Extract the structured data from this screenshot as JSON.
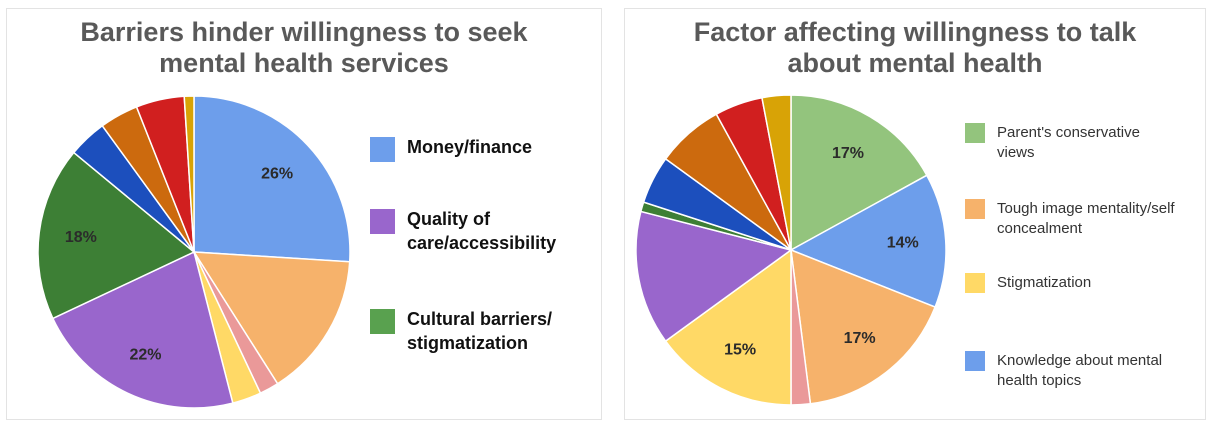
{
  "charts": [
    {
      "id": "left",
      "title": "Barriers hinder willingness to seek\nmental health services",
      "legend": [
        {
          "label": "Money/finance",
          "color": "#6d9eeb"
        },
        {
          "label": "Quality of\ncare/accessibility",
          "color": "#9966cc"
        },
        {
          "label": "Cultural barriers/\nstigmatization",
          "color": "#59a14f"
        }
      ]
    },
    {
      "id": "right",
      "title": "Factor affecting willingness to talk\nabout mental health",
      "legend": [
        {
          "label": "Parent's conservative\nviews",
          "color": "#93c47d"
        },
        {
          "label": "Tough image mentality/self\nconcealment",
          "color": "#f6b26b"
        },
        {
          "label": "Stigmatization",
          "color": "#ffd966"
        },
        {
          "label": "Knowledge about mental\nhealth topics",
          "color": "#6d9eeb"
        }
      ]
    }
  ],
  "chart_data": [
    {
      "type": "pie",
      "title": "Barriers hinder willingness to seek mental health services",
      "legend_position": "right",
      "slices": [
        {
          "value": 26,
          "label": "26%",
          "color": "#6d9eeb"
        },
        {
          "value": 15,
          "label": "",
          "color": "#f6b26b"
        },
        {
          "value": 2,
          "label": "",
          "color": "#ea9999"
        },
        {
          "value": 3,
          "label": "",
          "color": "#ffd966"
        },
        {
          "value": 22,
          "label": "22%",
          "color": "#9966cc"
        },
        {
          "value": 18,
          "label": "18%",
          "color": "#3d7f35"
        },
        {
          "value": 4,
          "label": "",
          "color": "#1c4fbd"
        },
        {
          "value": 4,
          "label": "",
          "color": "#cc6a0e"
        },
        {
          "value": 5,
          "label": "",
          "color": "#d11f1f"
        },
        {
          "value": 1,
          "label": "",
          "color": "#d8a306"
        }
      ]
    },
    {
      "type": "pie",
      "title": "Factor affecting willingness to talk about mental health",
      "legend_position": "right",
      "slices": [
        {
          "value": 17,
          "label": "17%",
          "color": "#93c47d"
        },
        {
          "value": 14,
          "label": "14%",
          "color": "#6d9eeb"
        },
        {
          "value": 17,
          "label": "17%",
          "color": "#f6b26b"
        },
        {
          "value": 2,
          "label": "",
          "color": "#ea9999"
        },
        {
          "value": 15,
          "label": "15%",
          "color": "#ffd966"
        },
        {
          "value": 14,
          "label": "",
          "color": "#9966cc"
        },
        {
          "value": 1,
          "label": "",
          "color": "#3d7f35"
        },
        {
          "value": 5,
          "label": "",
          "color": "#1c4fbd"
        },
        {
          "value": 7,
          "label": "",
          "color": "#cc6a0e"
        },
        {
          "value": 5,
          "label": "",
          "color": "#d11f1f"
        },
        {
          "value": 3,
          "label": "",
          "color": "#d8a306"
        }
      ]
    }
  ]
}
